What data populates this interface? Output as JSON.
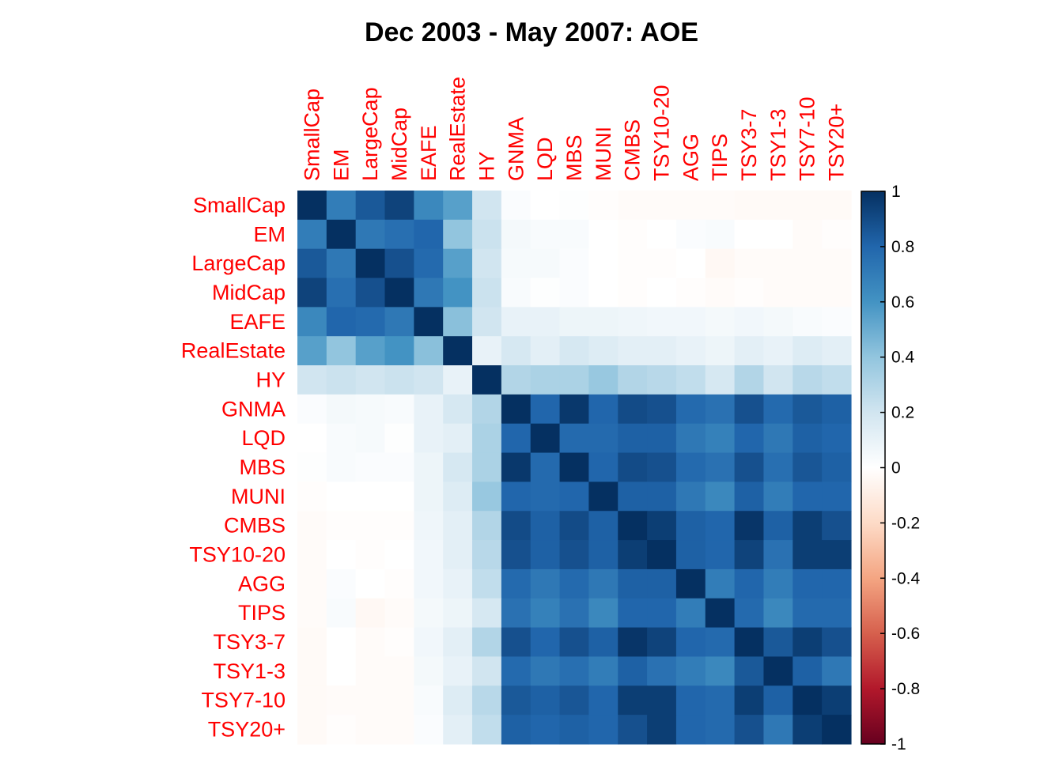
{
  "chart_data": {
    "type": "heatmap",
    "title": "Dec 2003 - May 2007: AOE",
    "label_color": "#ff0000",
    "labels": [
      "SmallCap",
      "EM",
      "LargeCap",
      "MidCap",
      "EAFE",
      "RealEstate",
      "HY",
      "GNMA",
      "LQD",
      "MBS",
      "MUNI",
      "CMBS",
      "TSY10-20",
      "AGG",
      "TIPS",
      "TSY3-7",
      "TSY1-3",
      "TSY7-10",
      "TSY20+"
    ],
    "matrix": [
      [
        1.0,
        0.7,
        0.85,
        0.93,
        0.65,
        0.55,
        0.2,
        0.02,
        0.0,
        0.01,
        -0.01,
        -0.02,
        -0.02,
        -0.02,
        -0.02,
        -0.03,
        -0.03,
        -0.03,
        -0.03
      ],
      [
        0.7,
        1.0,
        0.72,
        0.76,
        0.8,
        0.4,
        0.22,
        0.05,
        0.03,
        0.03,
        0.0,
        -0.01,
        0.0,
        0.02,
        0.03,
        0.0,
        0.0,
        -0.02,
        -0.01
      ],
      [
        0.85,
        0.72,
        1.0,
        0.88,
        0.78,
        0.55,
        0.2,
        0.04,
        0.04,
        0.02,
        0.0,
        -0.01,
        -0.01,
        0.0,
        -0.04,
        -0.02,
        -0.02,
        -0.02,
        -0.02
      ],
      [
        0.93,
        0.76,
        0.88,
        1.0,
        0.72,
        0.6,
        0.22,
        0.03,
        0.01,
        0.02,
        0.0,
        -0.01,
        0.0,
        -0.01,
        -0.02,
        -0.01,
        -0.02,
        -0.02,
        -0.02
      ],
      [
        0.65,
        0.8,
        0.78,
        0.72,
        1.0,
        0.42,
        0.2,
        0.1,
        0.1,
        0.08,
        0.08,
        0.07,
        0.06,
        0.06,
        0.05,
        0.06,
        0.05,
        0.03,
        0.02
      ],
      [
        0.55,
        0.4,
        0.55,
        0.6,
        0.42,
        1.0,
        0.1,
        0.18,
        0.12,
        0.18,
        0.15,
        0.12,
        0.12,
        0.1,
        0.08,
        0.12,
        0.1,
        0.15,
        0.12
      ],
      [
        0.2,
        0.22,
        0.2,
        0.22,
        0.2,
        0.1,
        1.0,
        0.3,
        0.32,
        0.32,
        0.38,
        0.3,
        0.28,
        0.25,
        0.18,
        0.3,
        0.2,
        0.28,
        0.25
      ],
      [
        0.02,
        0.05,
        0.04,
        0.03,
        0.1,
        0.18,
        0.3,
        1.0,
        0.8,
        0.97,
        0.8,
        0.9,
        0.88,
        0.78,
        0.75,
        0.88,
        0.78,
        0.85,
        0.82
      ],
      [
        0.0,
        0.03,
        0.04,
        0.01,
        0.1,
        0.12,
        0.32,
        0.8,
        1.0,
        0.78,
        0.78,
        0.82,
        0.82,
        0.72,
        0.68,
        0.8,
        0.72,
        0.82,
        0.8
      ],
      [
        0.01,
        0.03,
        0.02,
        0.02,
        0.08,
        0.18,
        0.32,
        0.97,
        0.78,
        1.0,
        0.8,
        0.9,
        0.88,
        0.78,
        0.75,
        0.88,
        0.76,
        0.86,
        0.82
      ],
      [
        -0.01,
        0.0,
        0.0,
        0.0,
        0.08,
        0.15,
        0.38,
        0.8,
        0.78,
        0.8,
        1.0,
        0.82,
        0.82,
        0.72,
        0.65,
        0.82,
        0.7,
        0.8,
        0.8
      ],
      [
        -0.02,
        -0.01,
        -0.01,
        -0.01,
        0.07,
        0.12,
        0.3,
        0.9,
        0.82,
        0.9,
        0.82,
        1.0,
        0.95,
        0.82,
        0.8,
        0.98,
        0.82,
        0.95,
        0.88
      ],
      [
        -0.02,
        0.0,
        -0.01,
        0.0,
        0.06,
        0.12,
        0.28,
        0.88,
        0.82,
        0.88,
        0.82,
        0.95,
        1.0,
        0.82,
        0.8,
        0.93,
        0.75,
        0.95,
        0.95
      ],
      [
        -0.02,
        0.02,
        0.0,
        -0.01,
        0.06,
        0.1,
        0.25,
        0.78,
        0.72,
        0.78,
        0.72,
        0.82,
        0.82,
        1.0,
        0.7,
        0.8,
        0.7,
        0.8,
        0.8
      ],
      [
        -0.02,
        0.03,
        -0.04,
        -0.02,
        0.05,
        0.08,
        0.18,
        0.75,
        0.68,
        0.75,
        0.65,
        0.8,
        0.8,
        0.7,
        1.0,
        0.78,
        0.65,
        0.78,
        0.78
      ],
      [
        -0.03,
        0.0,
        -0.02,
        -0.01,
        0.06,
        0.12,
        0.3,
        0.88,
        0.8,
        0.88,
        0.82,
        0.98,
        0.93,
        0.8,
        0.78,
        1.0,
        0.85,
        0.95,
        0.88
      ],
      [
        -0.03,
        0.0,
        -0.02,
        -0.02,
        0.05,
        0.1,
        0.2,
        0.78,
        0.72,
        0.76,
        0.7,
        0.82,
        0.75,
        0.7,
        0.65,
        0.85,
        1.0,
        0.82,
        0.72
      ],
      [
        -0.03,
        -0.02,
        -0.02,
        -0.02,
        0.03,
        0.15,
        0.28,
        0.85,
        0.82,
        0.86,
        0.8,
        0.95,
        0.95,
        0.8,
        0.78,
        0.95,
        0.82,
        1.0,
        0.95
      ],
      [
        -0.03,
        -0.01,
        -0.02,
        -0.02,
        0.02,
        0.12,
        0.25,
        0.82,
        0.8,
        0.82,
        0.8,
        0.88,
        0.95,
        0.8,
        0.78,
        0.88,
        0.72,
        0.95,
        1.0
      ]
    ],
    "colorbar": {
      "range": [
        -1,
        1
      ],
      "ticks": [
        "1",
        "0.8",
        "0.6",
        "0.4",
        "0.2",
        "0",
        "-0.2",
        "-0.4",
        "-0.6",
        "-0.8",
        "-1"
      ],
      "tick_values": [
        1,
        0.8,
        0.6,
        0.4,
        0.2,
        0,
        -0.2,
        -0.4,
        -0.6,
        -0.8,
        -1
      ],
      "palette": [
        "#67001F",
        "#B2182B",
        "#D6604D",
        "#F4A582",
        "#FDDBC7",
        "#FFFFFF",
        "#D1E5F0",
        "#92C5DE",
        "#4393C3",
        "#2166AC",
        "#053061"
      ]
    }
  }
}
